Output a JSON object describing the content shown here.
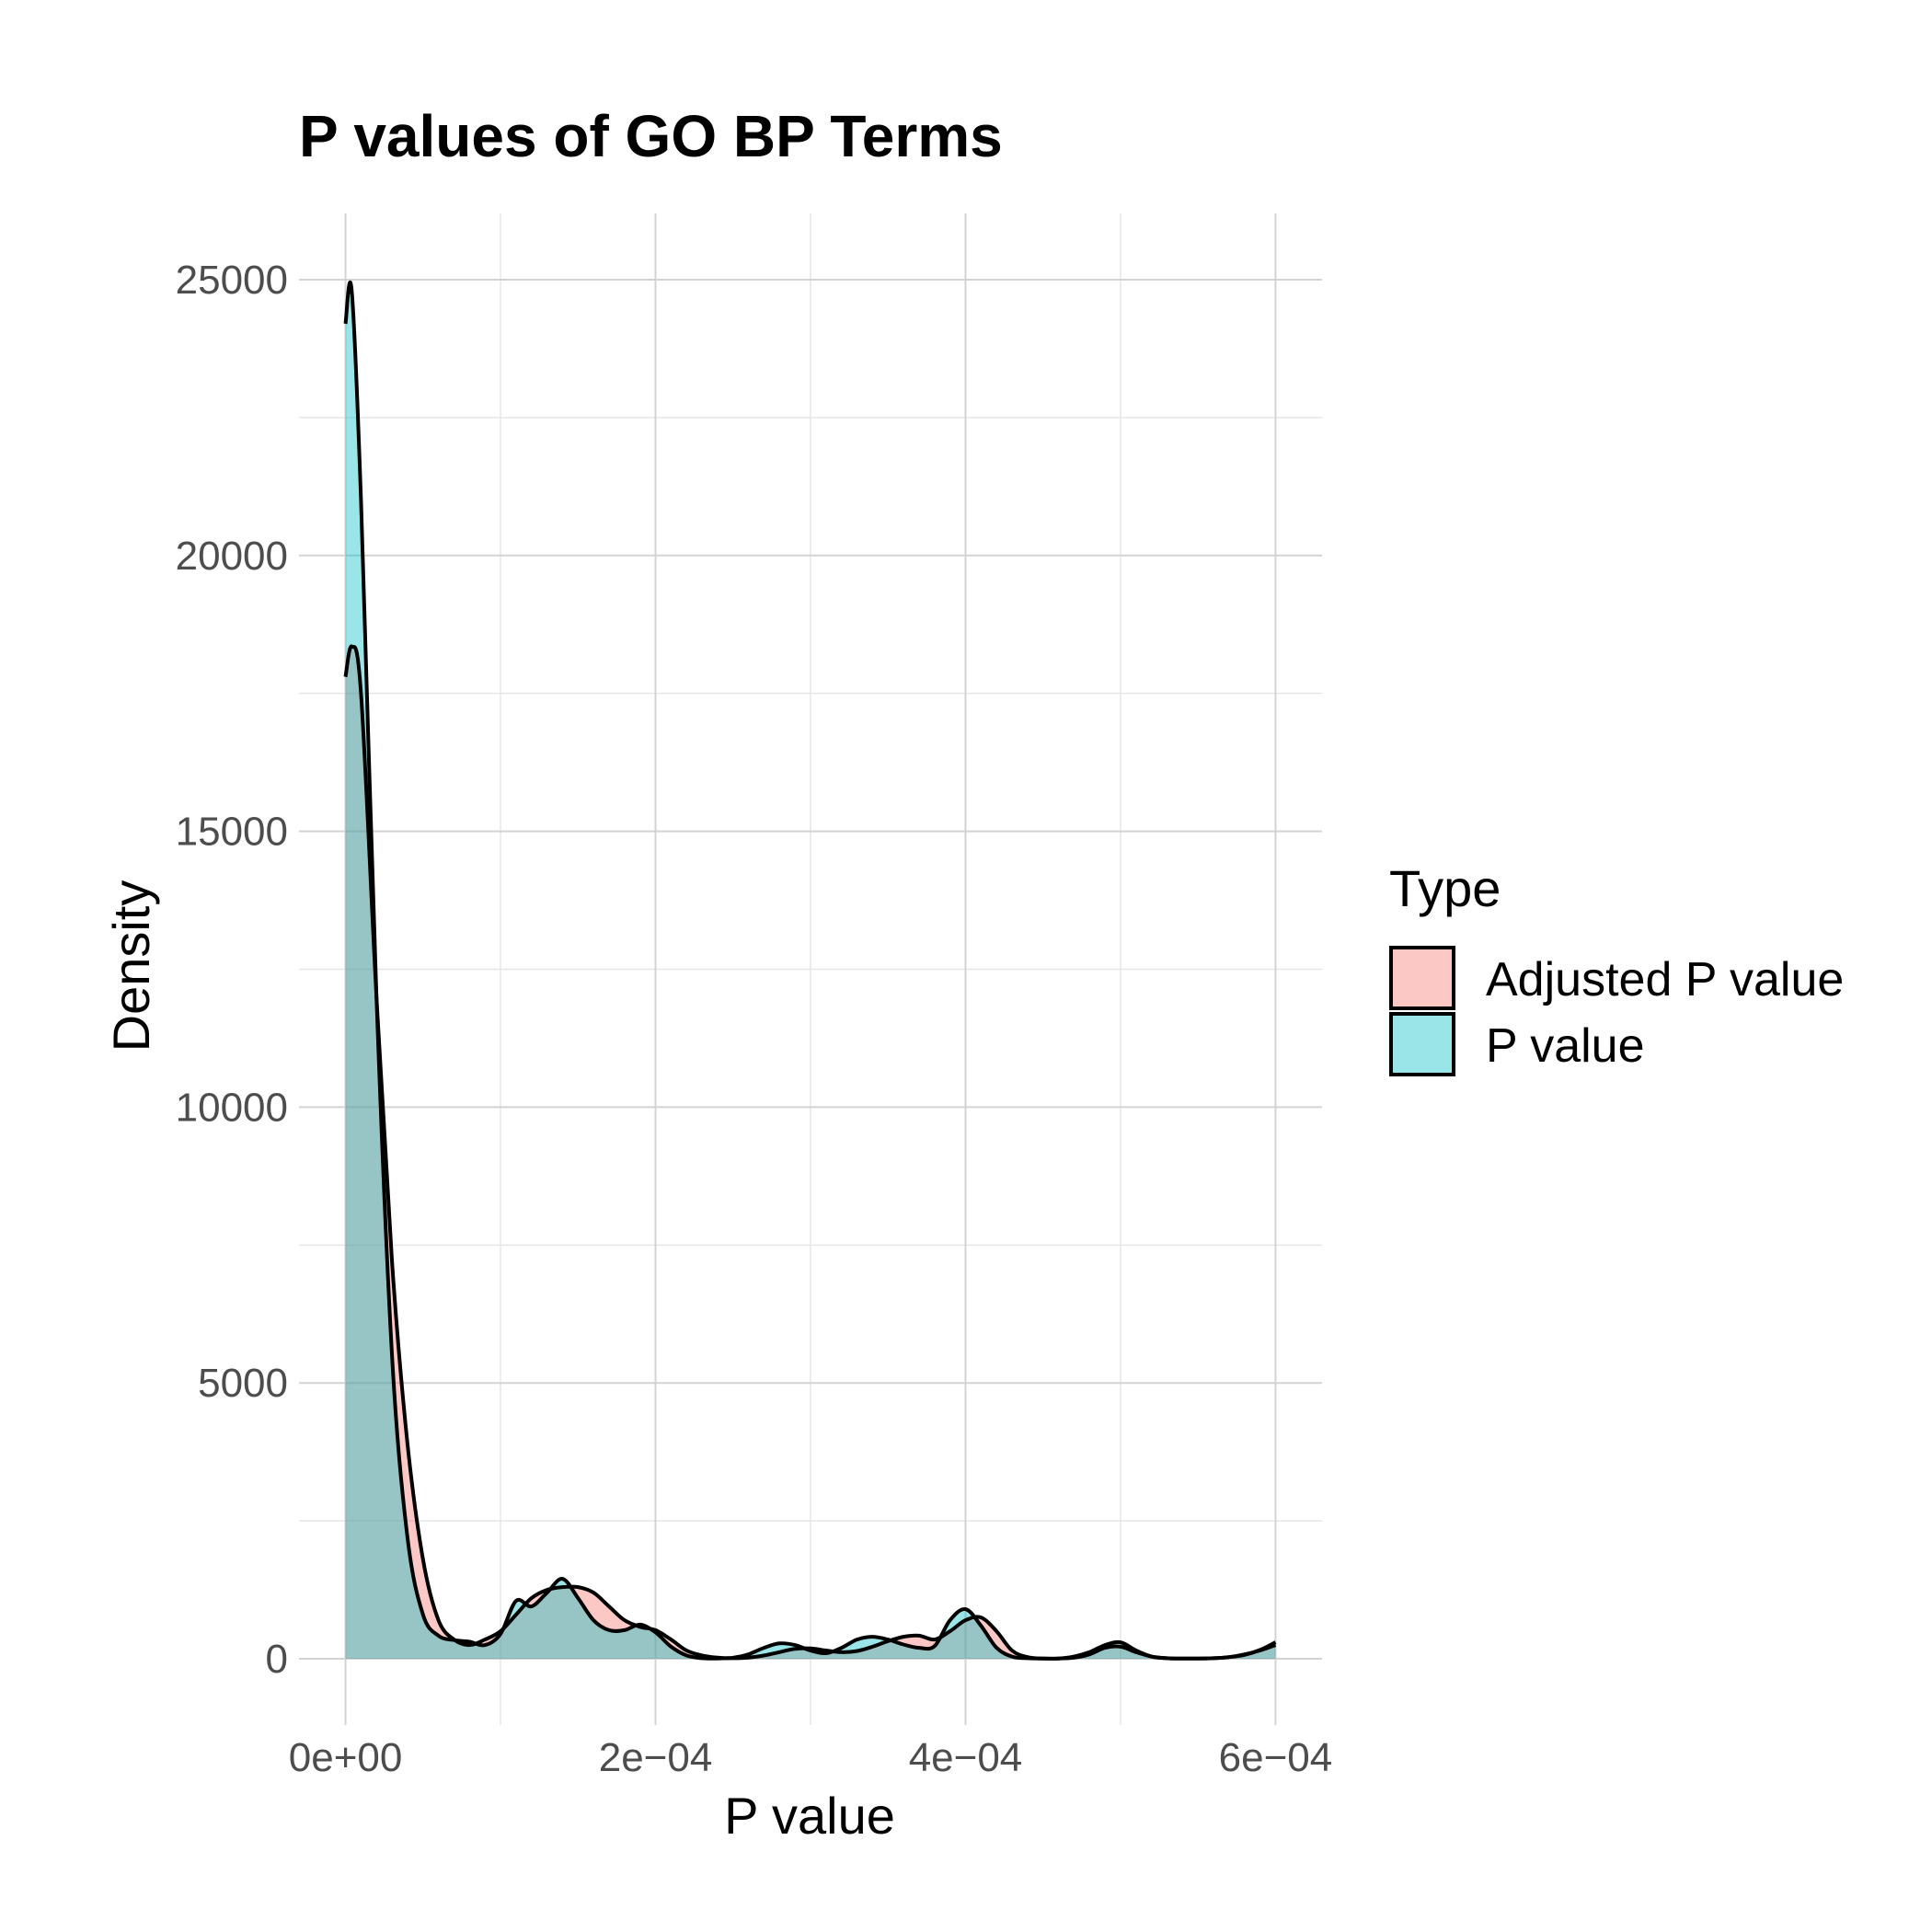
{
  "chart_data": {
    "type": "area",
    "title": "P values of GO BP Terms",
    "xlabel": "P value",
    "ylabel": "Density",
    "xlim": [
      -3e-05,
      0.00063
    ],
    "ylim": [
      -1200,
      26200
    ],
    "x_ticks": [
      0,
      0.0002,
      0.0004,
      0.0006
    ],
    "x_tick_labels": [
      "0e+00",
      "2e−04",
      "4e−04",
      "6e−04"
    ],
    "y_ticks": [
      0,
      5000,
      10000,
      15000,
      20000,
      25000
    ],
    "y_tick_labels": [
      "0",
      "5000",
      "10000",
      "15000",
      "20000",
      "25000"
    ],
    "grid": true,
    "legend": {
      "title": "Type",
      "position": "right"
    },
    "series": [
      {
        "name": "Adjusted P value",
        "color": "#F8766D",
        "alpha": 0.4,
        "x": [
          0,
          4e-06,
          1e-05,
          2e-05,
          3e-05,
          4e-05,
          5e-05,
          6e-05,
          7e-05,
          8e-05,
          9e-05,
          0.0001,
          0.00011,
          0.00012,
          0.00013,
          0.00014,
          0.00015,
          0.00016,
          0.00017,
          0.00018,
          0.00019,
          0.0002,
          0.00021,
          0.00022,
          0.00023,
          0.00024,
          0.00025,
          0.00026,
          0.00027,
          0.00028,
          0.00029,
          0.0003,
          0.00031,
          0.00032,
          0.00033,
          0.00034,
          0.00035,
          0.00036,
          0.00037,
          0.00038,
          0.00039,
          0.0004,
          0.00041,
          0.00042,
          0.00043,
          0.00044,
          0.00045,
          0.00046,
          0.00047,
          0.00048,
          0.00049,
          0.0005,
          0.00051,
          0.00052,
          0.00053,
          0.00054,
          0.00055,
          0.00056,
          0.00057,
          0.00058,
          0.00059,
          0.0006
        ],
        "y": [
          17800,
          18350,
          17500,
          12000,
          7200,
          3900,
          1800,
          700,
          350,
          250,
          350,
          500,
          800,
          1100,
          1250,
          1300,
          1300,
          1200,
          950,
          700,
          580,
          520,
          350,
          150,
          60,
          20,
          10,
          20,
          60,
          120,
          180,
          190,
          150,
          120,
          140,
          220,
          320,
          400,
          420,
          350,
          500,
          700,
          750,
          500,
          150,
          30,
          5,
          5,
          20,
          80,
          200,
          220,
          120,
          40,
          10,
          5,
          5,
          10,
          30,
          80,
          150,
          250
        ]
      },
      {
        "name": "P value",
        "color": "#00BFC4",
        "alpha": 0.4,
        "x": [
          0,
          4e-06,
          1e-05,
          2e-05,
          3e-05,
          4e-05,
          5e-05,
          6e-05,
          7e-05,
          8e-05,
          9e-05,
          0.0001,
          0.00011,
          0.00012,
          0.00013,
          0.00014,
          0.00015,
          0.00016,
          0.00017,
          0.00018,
          0.00019,
          0.0002,
          0.00021,
          0.00022,
          0.00023,
          0.00024,
          0.00025,
          0.00026,
          0.00027,
          0.00028,
          0.00029,
          0.0003,
          0.00031,
          0.00032,
          0.00033,
          0.00034,
          0.00035,
          0.00036,
          0.00037,
          0.00038,
          0.00039,
          0.0004,
          0.00041,
          0.00042,
          0.00043,
          0.00044,
          0.00045,
          0.00046,
          0.00047,
          0.00048,
          0.00049,
          0.0005,
          0.00051,
          0.00052,
          0.00053,
          0.00054,
          0.00055,
          0.00056,
          0.00057,
          0.00058,
          0.00059,
          0.0006
        ],
        "y": [
          24200,
          24800,
          21000,
          12000,
          5500,
          2200,
          800,
          420,
          340,
          310,
          250,
          450,
          1050,
          950,
          1200,
          1450,
          1100,
          700,
          520,
          520,
          620,
          480,
          220,
          60,
          10,
          5,
          20,
          80,
          200,
          280,
          250,
          150,
          100,
          200,
          350,
          400,
          350,
          260,
          200,
          230,
          700,
          900,
          600,
          200,
          40,
          10,
          5,
          5,
          40,
          120,
          250,
          300,
          150,
          40,
          10,
          5,
          5,
          10,
          30,
          70,
          160,
          300
        ]
      }
    ]
  }
}
